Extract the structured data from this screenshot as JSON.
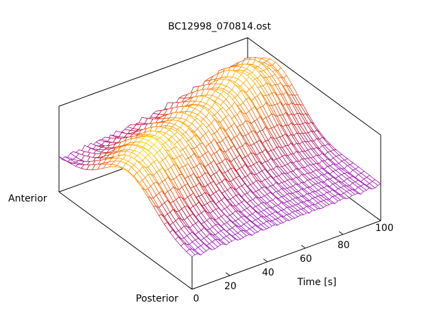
{
  "chart_data": {
    "type": "surface",
    "title": "BC12998_070814.ost",
    "xlabel": "Time [s]",
    "ylabel_ticks": [
      "Posterior",
      "Anterior"
    ],
    "xlim": [
      0,
      100
    ],
    "xticks": [
      "0",
      "20",
      "40",
      "60",
      "80",
      "100"
    ],
    "xtick_values": [
      0,
      20,
      40,
      60,
      80,
      100
    ],
    "ylim": [
      0,
      1
    ],
    "zlim": [
      0,
      1
    ],
    "grid": false,
    "surface_model": {
      "times": [
        0,
        10,
        20,
        30,
        40,
        50,
        60,
        70,
        80,
        90,
        100
      ],
      "baseline": [
        0.36,
        0.37,
        0.38,
        0.38,
        0.39,
        0.39,
        0.4,
        0.4,
        0.41,
        0.41,
        0.42
      ],
      "peak_amplitude": [
        0.45,
        0.52,
        0.55,
        0.5,
        0.48,
        0.5,
        0.52,
        0.55,
        0.6,
        0.58,
        0.5
      ],
      "peak_position": [
        0.5,
        0.53,
        0.56,
        0.59,
        0.62,
        0.65,
        0.68,
        0.71,
        0.74,
        0.77,
        0.8
      ],
      "peak_width": 0.28
    },
    "palette": [
      "#8a1cff",
      "#c8102e",
      "#ff7a00",
      "#ffee00"
    ]
  }
}
